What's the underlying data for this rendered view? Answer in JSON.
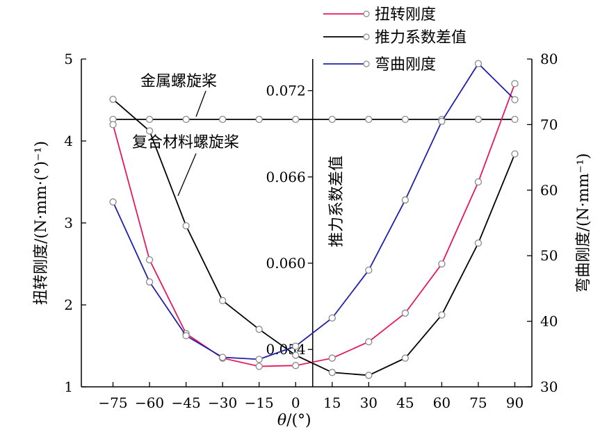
{
  "chart_data": {
    "type": "line",
    "x": [
      -75,
      -60,
      -45,
      -30,
      -15,
      0,
      15,
      30,
      45,
      60,
      75,
      90
    ],
    "xticks": [
      "−75",
      "−60",
      "−45",
      "−30",
      "−15",
      "0",
      "15",
      "30",
      "45",
      "60",
      "75",
      "90"
    ],
    "xlabel_italic": "θ",
    "xlabel_rest": "/(°)",
    "xlim": [
      -88,
      97
    ],
    "axes": {
      "left": {
        "label": "扭转刚度/(N·mm·(°)⁻¹)",
        "lim": [
          1,
          5
        ],
        "ticks": [
          1,
          2,
          3,
          4,
          5
        ],
        "tick_labels": [
          "1",
          "2",
          "3",
          "4",
          "5"
        ]
      },
      "mid": {
        "label": "推力系数差值",
        "lim": [
          0.0514,
          0.0742
        ],
        "ticks": [
          0.054,
          0.06,
          0.066,
          0.072
        ],
        "tick_labels": [
          "0.054",
          "0.060",
          "0.066",
          "0.072"
        ],
        "position_x": 7
      },
      "right": {
        "label": "弯曲刚度/(N·mm⁻¹)",
        "lim": [
          30,
          80
        ],
        "ticks": [
          30,
          40,
          50,
          60,
          70,
          80
        ],
        "tick_labels": [
          "30",
          "40",
          "50",
          "60",
          "70",
          "80"
        ]
      }
    },
    "series": [
      {
        "name": "扭转刚度",
        "color": "#e8175d",
        "axis": "left",
        "x": [
          -75,
          -60,
          -45,
          -30,
          -15,
          0,
          15,
          30,
          45,
          60,
          75,
          90
        ],
        "values": [
          4.2,
          2.55,
          1.65,
          1.35,
          1.25,
          1.26,
          1.35,
          1.55,
          1.9,
          2.5,
          3.5,
          4.7
        ]
      },
      {
        "name": "推力系数差值",
        "color": "#000000",
        "axis": "mid",
        "x": [
          -75,
          -60,
          -45,
          -30,
          -15,
          0,
          15,
          30,
          45,
          60,
          75,
          90
        ],
        "values": [
          0.0714,
          0.0692,
          0.0626,
          0.0574,
          0.0554,
          0.0536,
          0.0524,
          0.0522,
          0.0534,
          0.0564,
          0.0614,
          0.0676
        ]
      },
      {
        "name": "弯曲刚度",
        "color": "#1f1fa8",
        "axis": "right",
        "x": [
          -75,
          -60,
          -45,
          -30,
          -15,
          0,
          15,
          30,
          45,
          60,
          75,
          90
        ],
        "values": [
          58.2,
          46,
          37.8,
          34.5,
          34.2,
          36.2,
          40.5,
          47.8,
          58.5,
          70.5,
          79.3,
          73.8
        ]
      }
    ],
    "reference_lines": [
      {
        "label": "金属螺旋桨",
        "axis": "right",
        "value": 70.8,
        "x": [
          -75,
          -60,
          -45,
          -30,
          -15,
          0,
          15,
          30,
          45,
          60,
          75,
          90
        ]
      }
    ],
    "annotations": [
      {
        "text": "金属螺旋桨"
      },
      {
        "text": "复合材料螺旋桨"
      }
    ],
    "legend_position": "top-right",
    "legend": [
      "扭转刚度",
      "推力系数差值",
      "弯曲刚度"
    ]
  }
}
